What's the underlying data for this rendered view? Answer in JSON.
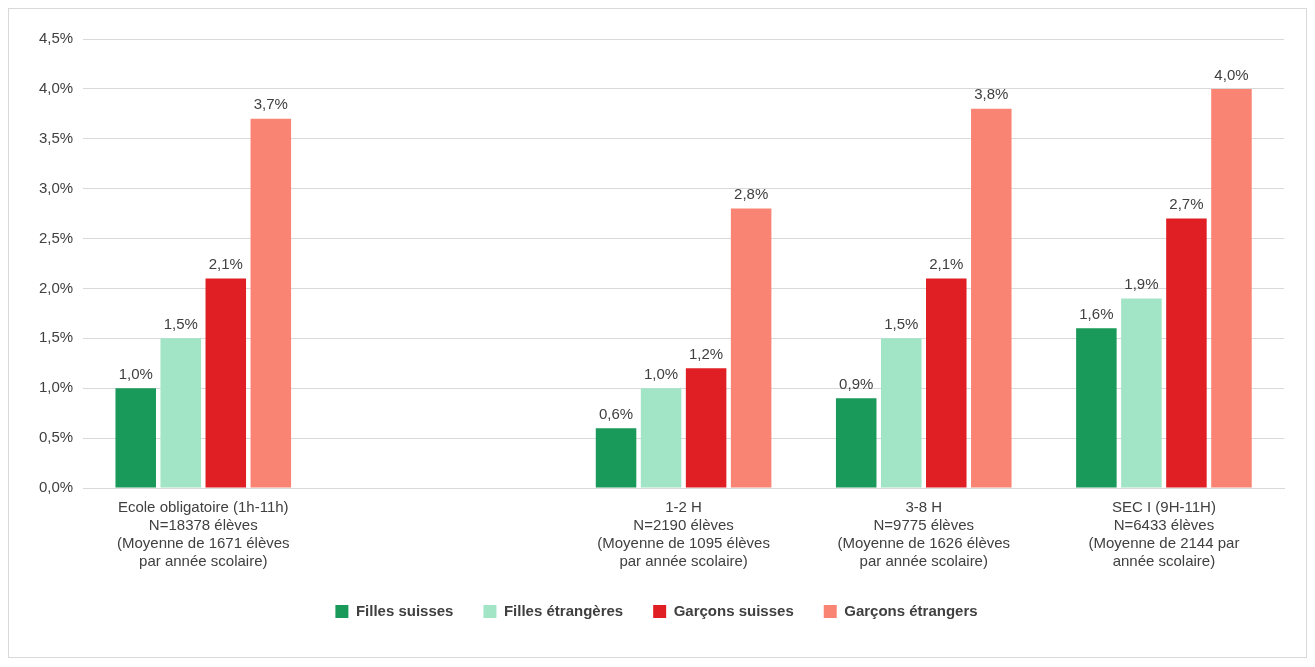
{
  "chart_data": {
    "type": "bar",
    "categories": [
      "Ecole obligatoire (1h-11h)\nN=18378 élèves\n(Moyenne de 1671 élèves\npar année scolaire)",
      null,
      "1-2 H\nN=2190 élèves\n(Moyenne de 1095 élèves\npar année scolaire)",
      "3-8 H\nN=9775 élèves\n(Moyenne de 1626 élèves\npar année scolaire)",
      "SEC I (9H-11H)\nN=6433 élèves\n(Moyenne de 2144 par\nannée scolaire)"
    ],
    "series": [
      {
        "name": "Filles suisses",
        "color": "#1a9a5a",
        "values": [
          1.0,
          null,
          0.6,
          0.9,
          1.6
        ],
        "value_labels": [
          "1,0%",
          null,
          "0,6%",
          "0,9%",
          "1,6%"
        ]
      },
      {
        "name": "Filles étrangères",
        "color": "#a2e4c6",
        "values": [
          1.5,
          null,
          1.0,
          1.5,
          1.9
        ],
        "value_labels": [
          "1,5%",
          null,
          "1,0%",
          "1,5%",
          "1,9%"
        ]
      },
      {
        "name": "Garçons suisses",
        "color": "#e01f25",
        "values": [
          2.1,
          null,
          1.2,
          2.1,
          2.7
        ],
        "value_labels": [
          "2,1%",
          null,
          "1,2%",
          "2,1%",
          "2,7%"
        ]
      },
      {
        "name": "Garçons étrangers",
        "color": "#fa8474",
        "values": [
          3.7,
          null,
          2.8,
          3.8,
          4.0
        ],
        "value_labels": [
          "3,7%",
          null,
          "2,8%",
          "3,8%",
          "4,0%"
        ]
      }
    ],
    "ylim": [
      0,
      4.5
    ],
    "yticks": [
      {
        "value": 0,
        "label": "0,0%"
      },
      {
        "value": 0.5,
        "label": "0,5%"
      },
      {
        "value": 1,
        "label": "1,0%"
      },
      {
        "value": 1.5,
        "label": "1,5%"
      },
      {
        "value": 2,
        "label": "2,0%"
      },
      {
        "value": 2.5,
        "label": "2,5%"
      },
      {
        "value": 3,
        "label": "3,0%"
      },
      {
        "value": 3.5,
        "label": "3,5%"
      },
      {
        "value": 4,
        "label": "4,0%"
      },
      {
        "value": 4.5,
        "label": "4,5%"
      }
    ],
    "grid": "y",
    "legend": "bottom"
  }
}
